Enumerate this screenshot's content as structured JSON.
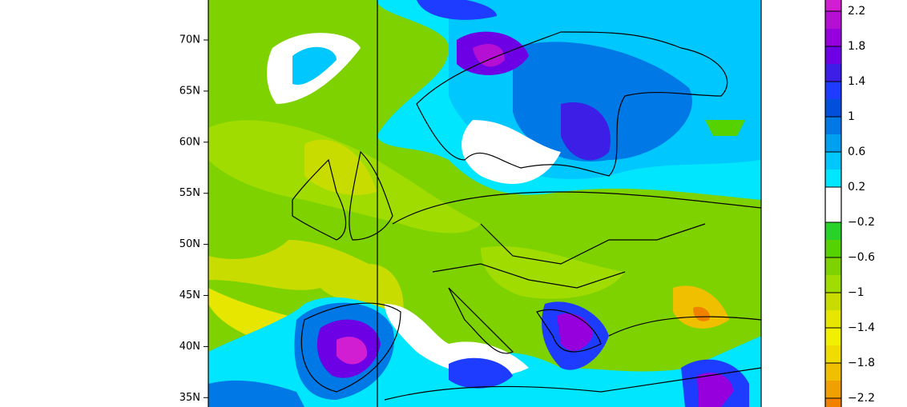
{
  "map": {
    "lat_labels": [
      "70N",
      "65N",
      "60N",
      "55N",
      "50N",
      "45N",
      "40N",
      "35N"
    ],
    "colorbar": {
      "labels": [
        "2.2",
        "1.8",
        "1.4",
        "1",
        "0.6",
        "0.2",
        "−0.2",
        "−0.6",
        "−1",
        "−1.4",
        "−1.8",
        "−2.2"
      ],
      "colors": [
        "#d21ed2",
        "#b40fd2",
        "#9600dc",
        "#6e00e6",
        "#3c1ee6",
        "#1e3cff",
        "#0050dc",
        "#0078e6",
        "#00a0f0",
        "#00c8ff",
        "#00e6ff",
        "#ffffff",
        "#ffffff",
        "#28d228",
        "#55d200",
        "#7dd200",
        "#a0dc00",
        "#c8dc00",
        "#e6e600",
        "#f0f000",
        "#f0dc00",
        "#f0c000",
        "#f0a000",
        "#f08200"
      ]
    }
  }
}
